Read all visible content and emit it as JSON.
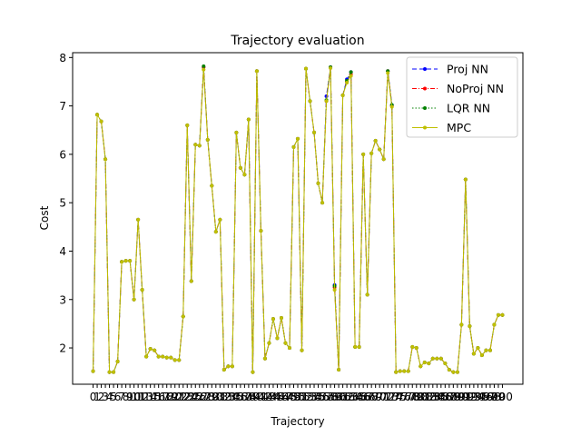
{
  "chart_data": {
    "type": "line",
    "title": "Trajectory evaluation",
    "xlabel": "Trajectory",
    "ylabel": "Cost",
    "xlim": [
      -5,
      105
    ],
    "ylim": [
      1.25,
      8.1
    ],
    "yticks": [
      2,
      3,
      4,
      5,
      6,
      7,
      8
    ],
    "xticks": [
      0,
      1,
      2,
      3,
      4,
      5,
      6,
      7,
      8,
      9,
      10,
      11,
      12,
      13,
      14,
      15,
      16,
      17,
      18,
      19,
      20,
      21,
      22,
      23,
      24,
      25,
      26,
      27,
      28,
      29,
      30,
      31,
      32,
      33,
      34,
      35,
      36,
      37,
      38,
      39,
      40,
      41,
      42,
      43,
      44,
      45,
      46,
      47,
      48,
      49,
      50,
      51,
      52,
      53,
      54,
      55,
      56,
      57,
      58,
      59,
      60,
      61,
      62,
      63,
      64,
      65,
      66,
      67,
      68,
      69,
      70,
      71,
      72,
      73,
      74,
      75,
      76,
      77,
      78,
      79,
      80,
      81,
      82,
      83,
      84,
      85,
      86,
      87,
      88,
      89,
      90,
      91,
      92,
      93,
      94,
      95,
      96,
      97,
      98,
      99,
      100
    ],
    "legend_position": "top-right",
    "x": [
      0,
      1,
      2,
      3,
      4,
      5,
      6,
      7,
      8,
      9,
      10,
      11,
      12,
      13,
      14,
      15,
      16,
      17,
      18,
      19,
      20,
      21,
      22,
      23,
      24,
      25,
      26,
      27,
      28,
      29,
      30,
      31,
      32,
      33,
      34,
      35,
      36,
      37,
      38,
      39,
      40,
      41,
      42,
      43,
      44,
      45,
      46,
      47,
      48,
      49,
      50,
      51,
      52,
      53,
      54,
      55,
      56,
      57,
      58,
      59,
      60,
      61,
      62,
      63,
      64,
      65,
      66,
      67,
      68,
      69,
      70,
      71,
      72,
      73,
      74,
      75,
      76,
      77,
      78,
      79,
      80,
      81,
      82,
      83,
      84,
      85,
      86,
      87,
      88,
      89,
      90,
      91,
      92,
      93,
      94,
      95,
      96,
      97,
      98,
      99,
      100
    ],
    "series": [
      {
        "name": "Proj NN",
        "color": "#0000ff",
        "dash": "5,3",
        "values": [
          1.52,
          6.82,
          6.68,
          5.9,
          1.5,
          1.5,
          1.72,
          3.78,
          3.8,
          3.8,
          3.0,
          4.65,
          3.2,
          1.82,
          1.98,
          1.95,
          1.82,
          1.82,
          1.8,
          1.8,
          1.75,
          1.75,
          2.65,
          6.6,
          3.38,
          6.2,
          6.18,
          7.8,
          6.3,
          5.35,
          4.4,
          4.65,
          1.55,
          1.62,
          1.62,
          6.45,
          5.72,
          5.58,
          6.72,
          1.5,
          7.72,
          4.42,
          1.78,
          2.1,
          2.6,
          2.2,
          2.62,
          2.1,
          2.0,
          6.15,
          6.32,
          1.95,
          7.77,
          7.1,
          6.45,
          5.4,
          5.0,
          7.2,
          7.8,
          3.3,
          1.55,
          7.22,
          7.55,
          7.7,
          2.02,
          2.02,
          6.0,
          3.1,
          6.02,
          6.28,
          6.1,
          5.9,
          7.72,
          7.02,
          1.5,
          1.52,
          1.52,
          1.52,
          2.02,
          2.0,
          1.62,
          1.7,
          1.68,
          1.78,
          1.78,
          1.78,
          1.68,
          1.55,
          1.5,
          1.5,
          2.48,
          5.48,
          2.45,
          1.88,
          2.0,
          1.85,
          1.95,
          1.95,
          2.48,
          2.68,
          2.68
        ]
      },
      {
        "name": "NoProj NN",
        "color": "#ff0000",
        "dash": "5,2,1,2",
        "values": [
          1.52,
          6.82,
          6.68,
          5.9,
          1.5,
          1.5,
          1.72,
          3.78,
          3.8,
          3.8,
          3.0,
          4.65,
          3.2,
          1.82,
          1.98,
          1.95,
          1.82,
          1.82,
          1.8,
          1.8,
          1.75,
          1.75,
          2.65,
          6.6,
          3.38,
          6.2,
          6.18,
          7.8,
          6.3,
          5.35,
          4.4,
          4.65,
          1.55,
          1.62,
          1.62,
          6.45,
          5.72,
          5.58,
          6.72,
          1.5,
          7.72,
          4.42,
          1.78,
          2.1,
          2.6,
          2.2,
          2.62,
          2.1,
          2.0,
          6.15,
          6.32,
          1.95,
          7.77,
          7.1,
          6.45,
          5.4,
          5.0,
          7.1,
          7.8,
          3.25,
          1.55,
          7.22,
          7.5,
          7.65,
          2.02,
          2.02,
          6.0,
          3.1,
          6.02,
          6.28,
          6.1,
          5.9,
          7.72,
          7.0,
          1.5,
          1.52,
          1.52,
          1.52,
          2.02,
          2.0,
          1.62,
          1.7,
          1.68,
          1.78,
          1.78,
          1.78,
          1.68,
          1.55,
          1.5,
          1.5,
          2.48,
          5.48,
          2.45,
          1.88,
          2.0,
          1.85,
          1.95,
          1.95,
          2.48,
          2.68,
          2.68
        ]
      },
      {
        "name": "LQR NN",
        "color": "#008000",
        "dash": "1.5,2",
        "values": [
          1.52,
          6.82,
          6.68,
          5.9,
          1.5,
          1.5,
          1.72,
          3.78,
          3.8,
          3.8,
          3.0,
          4.65,
          3.2,
          1.82,
          1.98,
          1.95,
          1.82,
          1.82,
          1.8,
          1.8,
          1.75,
          1.75,
          2.65,
          6.6,
          3.38,
          6.2,
          6.18,
          7.82,
          6.3,
          5.35,
          4.4,
          4.65,
          1.55,
          1.62,
          1.62,
          6.45,
          5.72,
          5.58,
          6.72,
          1.5,
          7.72,
          4.42,
          1.78,
          2.1,
          2.6,
          2.2,
          2.62,
          2.1,
          2.0,
          6.15,
          6.32,
          1.95,
          7.77,
          7.1,
          6.45,
          5.4,
          5.0,
          7.12,
          7.8,
          3.28,
          1.55,
          7.22,
          7.52,
          7.7,
          2.02,
          2.02,
          6.0,
          3.1,
          6.02,
          6.28,
          6.1,
          5.9,
          7.72,
          7.02,
          1.5,
          1.52,
          1.52,
          1.52,
          2.02,
          2.0,
          1.62,
          1.7,
          1.68,
          1.78,
          1.78,
          1.78,
          1.68,
          1.55,
          1.5,
          1.5,
          2.48,
          5.48,
          2.45,
          1.88,
          2.0,
          1.85,
          1.95,
          1.95,
          2.48,
          2.68,
          2.68
        ]
      },
      {
        "name": "MPC",
        "color": "#bfbf00",
        "dash": "",
        "values": [
          1.52,
          6.82,
          6.68,
          5.9,
          1.5,
          1.5,
          1.72,
          3.78,
          3.8,
          3.8,
          3.0,
          4.65,
          3.2,
          1.82,
          1.98,
          1.95,
          1.82,
          1.82,
          1.8,
          1.8,
          1.75,
          1.75,
          2.65,
          6.6,
          3.38,
          6.2,
          6.18,
          7.75,
          6.3,
          5.35,
          4.4,
          4.65,
          1.55,
          1.62,
          1.62,
          6.45,
          5.72,
          5.58,
          6.72,
          1.5,
          7.72,
          4.42,
          1.78,
          2.1,
          2.6,
          2.2,
          2.62,
          2.1,
          2.0,
          6.15,
          6.32,
          1.95,
          7.77,
          7.1,
          6.45,
          5.4,
          5.0,
          7.1,
          7.78,
          3.2,
          1.55,
          7.22,
          7.48,
          7.62,
          2.02,
          2.02,
          6.0,
          3.1,
          6.02,
          6.28,
          6.1,
          5.9,
          7.68,
          6.98,
          1.5,
          1.52,
          1.52,
          1.52,
          2.02,
          2.0,
          1.62,
          1.7,
          1.68,
          1.78,
          1.78,
          1.78,
          1.68,
          1.55,
          1.5,
          1.5,
          2.48,
          5.48,
          2.45,
          1.88,
          2.0,
          1.85,
          1.95,
          1.95,
          2.48,
          2.68,
          2.68
        ]
      }
    ]
  }
}
